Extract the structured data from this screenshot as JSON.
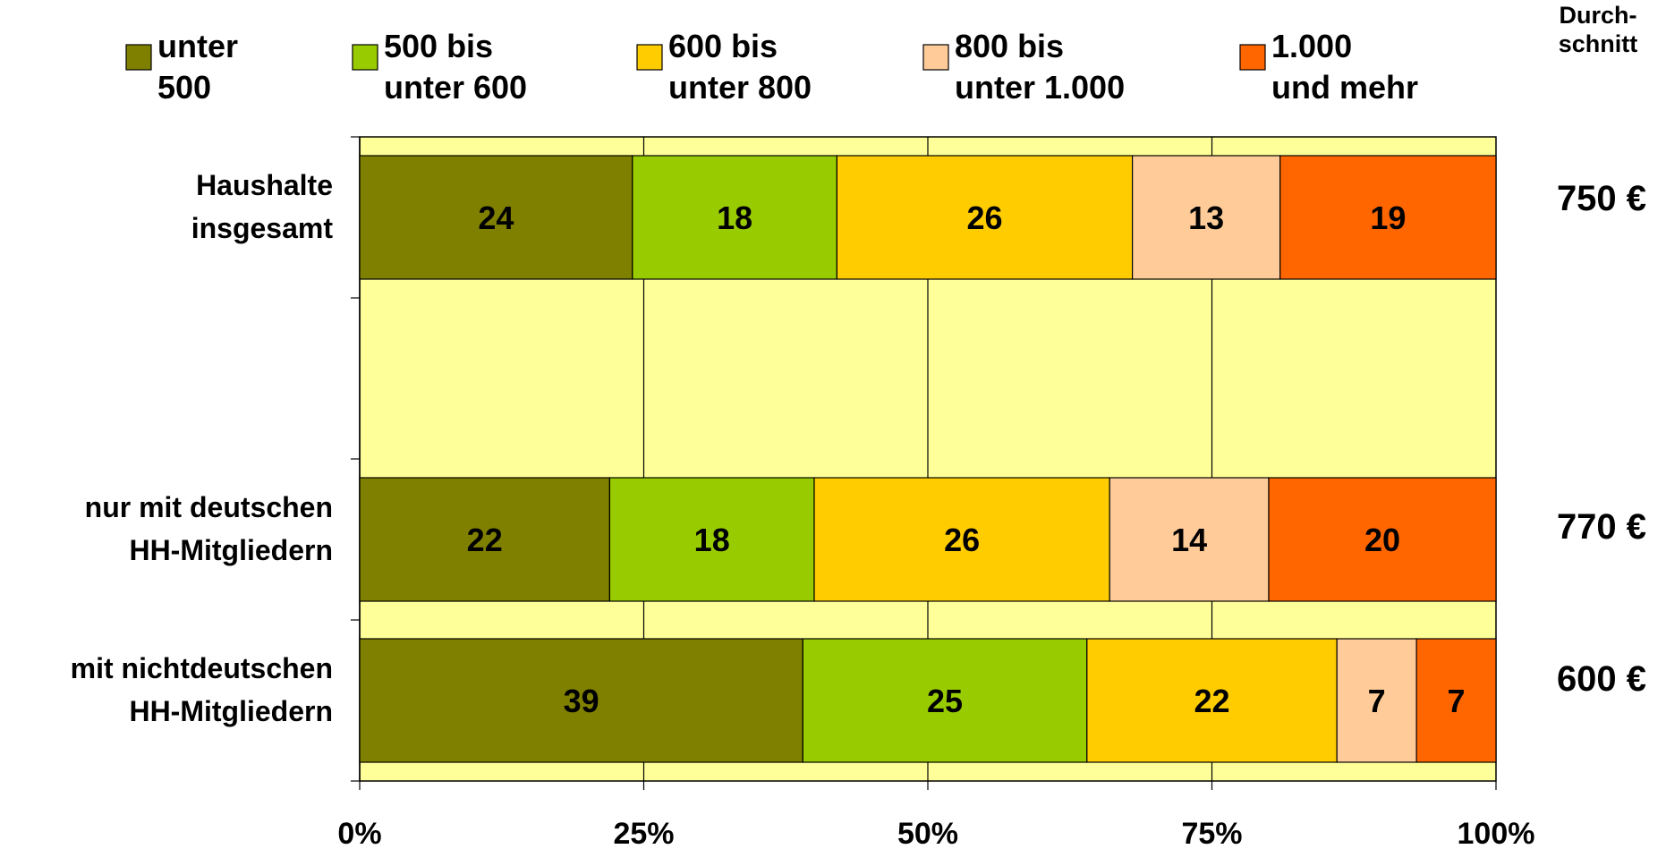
{
  "chart_data": {
    "type": "bar",
    "orientation": "horizontal",
    "stacked": "percent",
    "categories": [
      [
        "Haushalte",
        "insgesamt"
      ],
      [],
      [
        "nur mit deutschen",
        "HH-Mitgliedern"
      ],
      [
        "mit nichtdeutschen",
        "HH-Mitgliedern"
      ]
    ],
    "series": [
      {
        "name": [
          "unter",
          "500"
        ],
        "color": "#808000",
        "values": [
          24,
          null,
          22,
          39
        ]
      },
      {
        "name": [
          "500 bis",
          "unter 600"
        ],
        "color": "#99CC00",
        "values": [
          18,
          null,
          18,
          25
        ]
      },
      {
        "name": [
          "600 bis",
          "unter 800"
        ],
        "color": "#FFCC00",
        "values": [
          26,
          null,
          26,
          22
        ]
      },
      {
        "name": [
          "800 bis",
          "unter 1.000"
        ],
        "color": "#FFCC99",
        "values": [
          13,
          null,
          14,
          7
        ]
      },
      {
        "name": [
          "1.000",
          "und mehr"
        ],
        "color": "#FF6600",
        "values": [
          19,
          null,
          20,
          7
        ]
      }
    ],
    "average_header": [
      "Durch-",
      "schnitt"
    ],
    "averages": [
      "750 €",
      "",
      "770 €",
      "600 €"
    ],
    "x_ticks": [
      "0%",
      "25%",
      "50%",
      "75%",
      "100%"
    ],
    "x_tick_values": [
      0,
      25,
      50,
      75,
      100
    ],
    "xlim": [
      0,
      100
    ],
    "plot_background": "#FFFF99",
    "grid": true,
    "legend_position": "top"
  }
}
